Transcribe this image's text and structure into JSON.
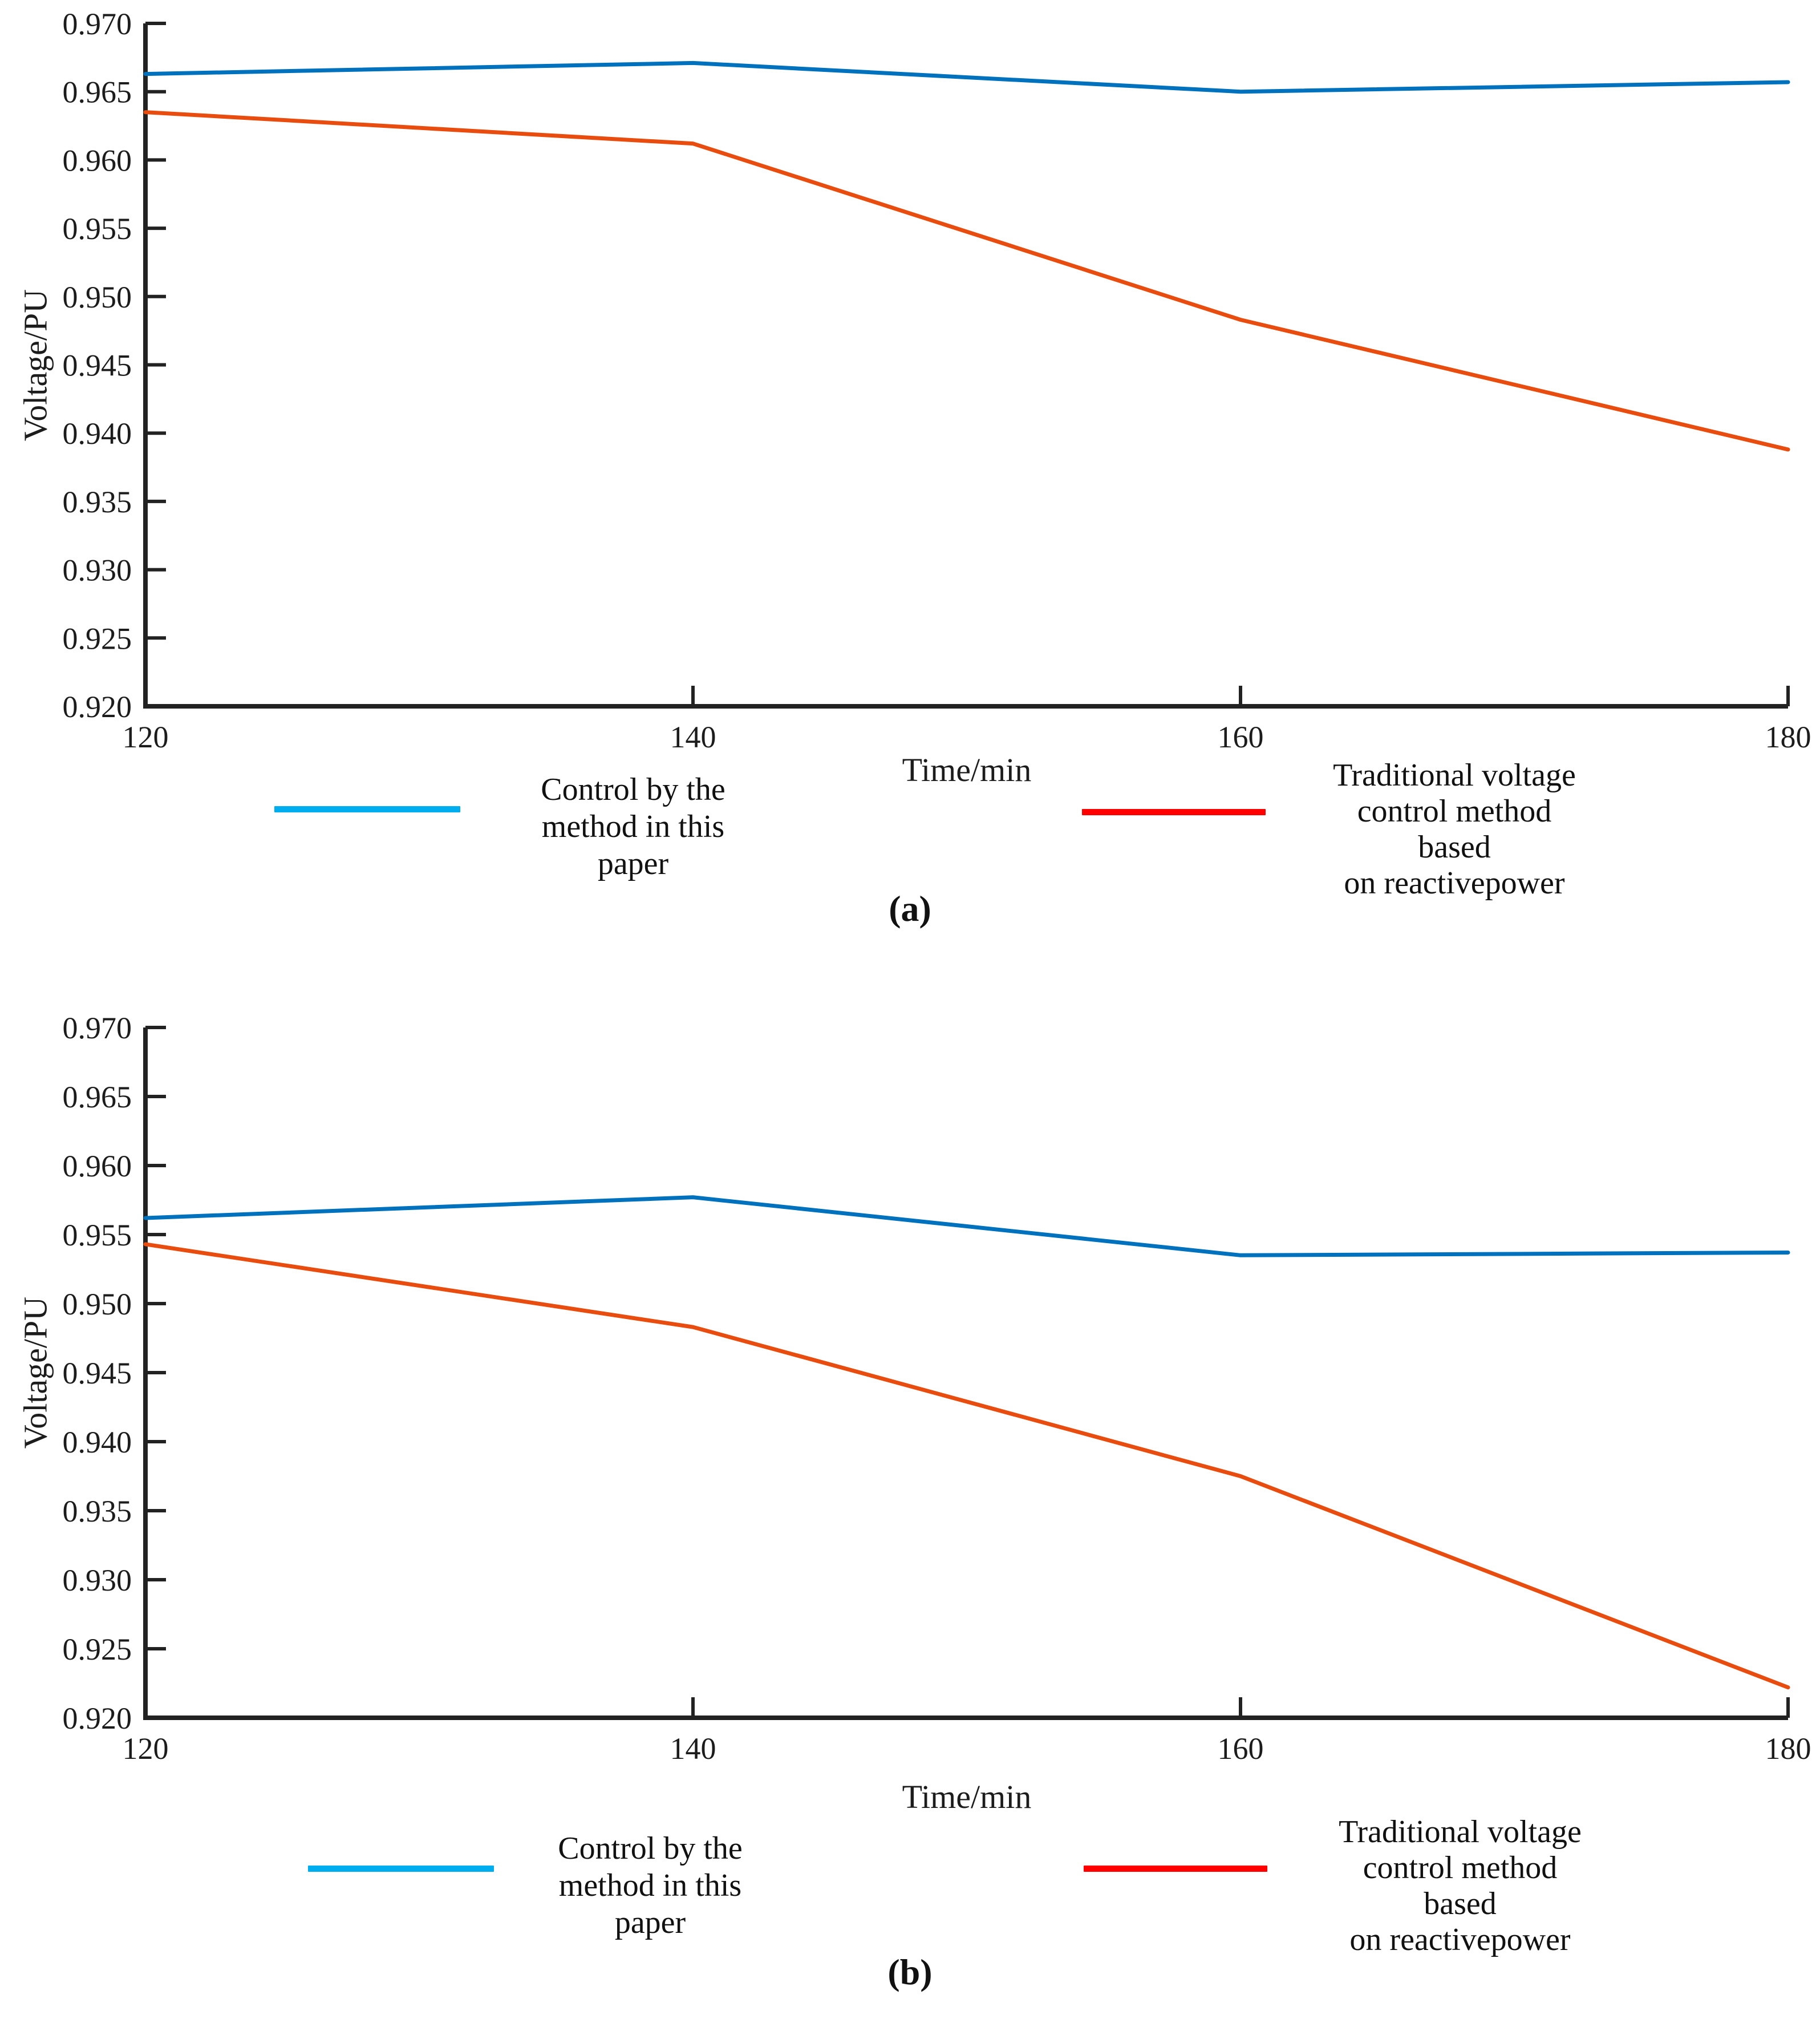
{
  "figure": {
    "background": "#ffffff",
    "captions": {
      "a": "(a)",
      "b": "(b)"
    },
    "legend": {
      "series1": {
        "color": "#00AEEF",
        "lines": [
          "Control by the",
          "method in this paper"
        ]
      },
      "series2": {
        "color": "#FF0000",
        "lines": [
          "Traditional voltage",
          "control method based",
          "on reactivepower"
        ]
      }
    }
  },
  "chart_data": [
    {
      "id": "a",
      "type": "line",
      "title": "",
      "xlabel": "Time/min",
      "ylabel": "Voltage/PU",
      "xlim": [
        120,
        180
      ],
      "ylim": [
        0.92,
        0.97
      ],
      "xticks": [
        120,
        140,
        160,
        180
      ],
      "yticks": [
        0.92,
        0.925,
        0.93,
        0.935,
        0.94,
        0.945,
        0.95,
        0.955,
        0.96,
        0.965,
        0.97
      ],
      "grid": false,
      "legend_position": "below",
      "x": [
        120,
        140,
        160,
        180
      ],
      "series": [
        {
          "name": "Control by the method in this paper",
          "color": "#0072BD",
          "values": [
            0.9663,
            0.9671,
            0.965,
            0.9657
          ]
        },
        {
          "name": "Traditional voltage control method based on reactivepower",
          "color": "#E84D0F",
          "values": [
            0.9635,
            0.9612,
            0.9483,
            0.9388
          ]
        }
      ]
    },
    {
      "id": "b",
      "type": "line",
      "title": "",
      "xlabel": "Time/min",
      "ylabel": "Voltage/PU",
      "xlim": [
        120,
        180
      ],
      "ylim": [
        0.92,
        0.97
      ],
      "xticks": [
        120,
        140,
        160,
        180
      ],
      "yticks": [
        0.92,
        0.925,
        0.93,
        0.935,
        0.94,
        0.945,
        0.95,
        0.955,
        0.96,
        0.965,
        0.97
      ],
      "grid": false,
      "legend_position": "below",
      "x": [
        120,
        140,
        160,
        180
      ],
      "series": [
        {
          "name": "Control by the method in this paper",
          "color": "#0072BD",
          "values": [
            0.9562,
            0.9577,
            0.9535,
            0.9537
          ]
        },
        {
          "name": "Traditional voltage control method based on reactivepower",
          "color": "#E84D0F",
          "values": [
            0.9543,
            0.9483,
            0.9375,
            0.9222
          ]
        }
      ]
    }
  ]
}
